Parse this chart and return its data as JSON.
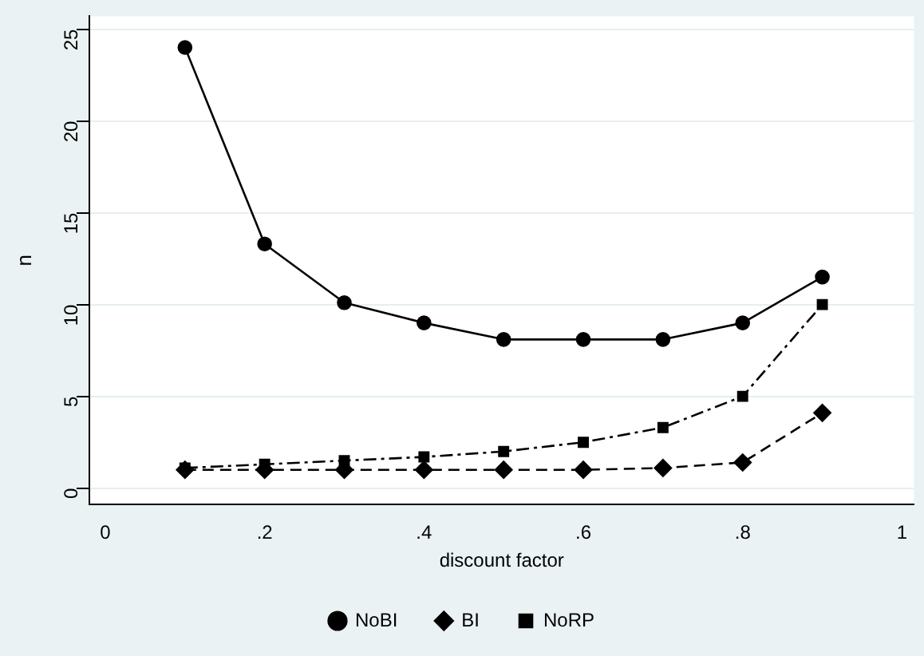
{
  "chart_data": {
    "type": "line",
    "xlabel": "discount factor",
    "ylabel": "n",
    "x": [
      0.1,
      0.2,
      0.3,
      0.4,
      0.5,
      0.6,
      0.7,
      0.8,
      0.9
    ],
    "series": [
      {
        "name": "NoBI",
        "color": "#000000",
        "marker": "circle",
        "line_style": "solid",
        "values": [
          24,
          13.3,
          10.1,
          9.0,
          8.1,
          8.1,
          8.1,
          9.0,
          11.5
        ]
      },
      {
        "name": "BI",
        "color": "#000000",
        "marker": "diamond",
        "line_style": "dashed",
        "values": [
          1,
          1,
          1,
          1,
          1,
          1,
          1.1,
          1.4,
          4.1
        ]
      },
      {
        "name": "NoRP",
        "color": "#000000",
        "marker": "square",
        "line_style": "dashdot",
        "values": [
          1.1,
          1.3,
          1.5,
          1.7,
          2.0,
          2.5,
          3.3,
          5.0,
          10.0
        ]
      }
    ],
    "xlim": [
      -0.02,
      1.015
    ],
    "xticks": [
      0,
      {
        "value": 0.2,
        "label": ".2"
      },
      {
        "value": 0.4,
        "label": ".4"
      },
      {
        "value": 0.6,
        "label": ".6"
      },
      {
        "value": 0.8,
        "label": ".8"
      },
      1
    ],
    "ylim": [
      -0.9,
      25.7
    ],
    "yticks": [
      0,
      5,
      10,
      15,
      20,
      25
    ],
    "grid": "y",
    "legend": "bottom"
  }
}
